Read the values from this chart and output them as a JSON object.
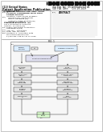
{
  "bg_color": "#ffffff",
  "barcode_color": "#111111",
  "header_bg": "#ffffff",
  "fig_label": "FIG. 1",
  "diagram_border": "#666666",
  "box_fill": "#e8e8e8",
  "box_border": "#444444",
  "line_color": "#333333",
  "text_color": "#111111",
  "gray_text": "#555555"
}
